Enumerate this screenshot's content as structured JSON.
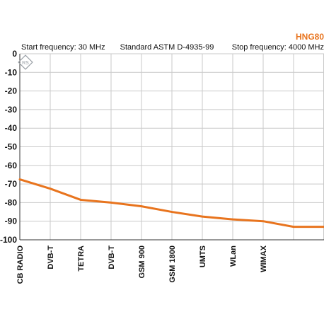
{
  "brand": {
    "name": "HNG80",
    "color": "#e8741e"
  },
  "header": {
    "start": "Start frequency: 30 MHz",
    "standard": "Standard ASTM D-4935-99",
    "stop": "Stop frequency: 4000 MHz"
  },
  "logo": {
    "icon": "rs-diamond-logo-icon",
    "text": "RS"
  },
  "chart_data": {
    "type": "line",
    "title": "",
    "xlabel": "",
    "ylabel": "",
    "ylim": [
      -100,
      0
    ],
    "yticks": [
      0,
      -10,
      -20,
      -30,
      -40,
      -50,
      -60,
      -70,
      -80,
      -90,
      -100
    ],
    "grid": true,
    "line_color": "#e8741e",
    "categories": [
      "CB RADIO",
      "DVB-T",
      "TETRA",
      "DVB-T",
      "GSM 900",
      "GSM 1800",
      "UMTS",
      "WLan",
      "WIMAX"
    ],
    "x": [
      0,
      1,
      2,
      3,
      4,
      5,
      6,
      7,
      8,
      9,
      10
    ],
    "x_marker_positions": [
      0,
      1,
      2,
      3,
      4,
      5,
      6,
      7,
      8,
      9
    ],
    "series": [
      {
        "values": [
          -67.5,
          -72.5,
          -78.5,
          -80,
          -82,
          -85,
          -87.5,
          -89,
          -90,
          -93,
          -93
        ]
      }
    ]
  }
}
